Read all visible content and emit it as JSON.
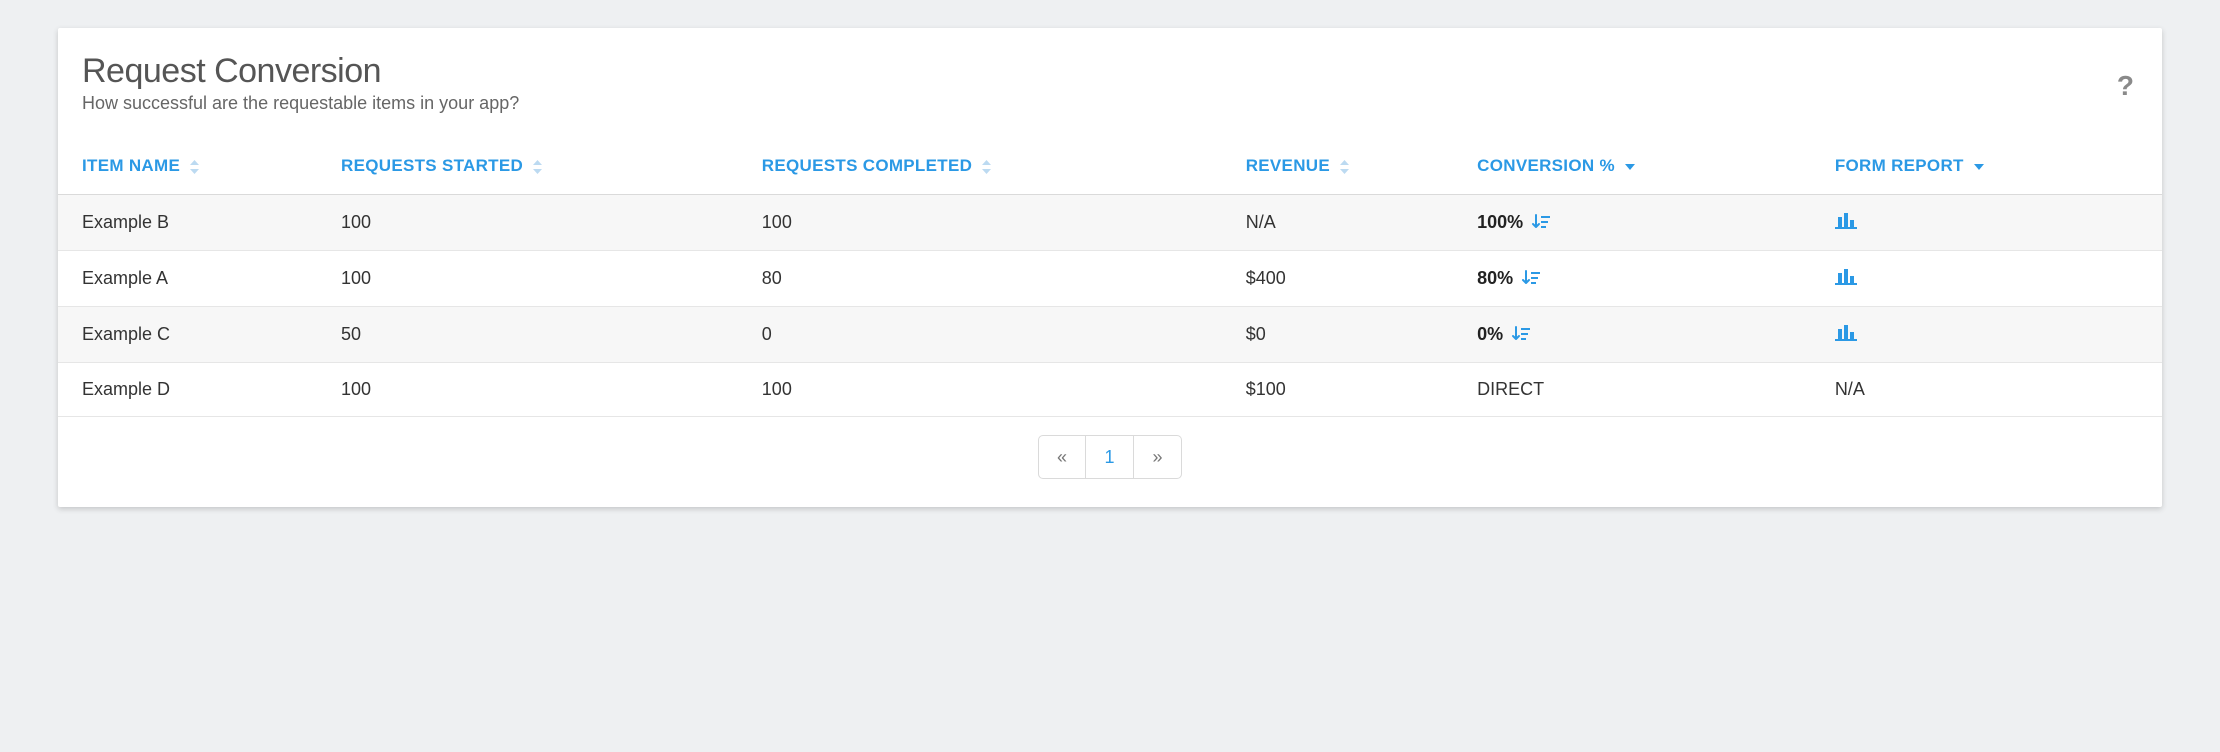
{
  "colors": {
    "page_bg": "#eef0f2",
    "card_bg": "#ffffff",
    "accent": "#2b99e5",
    "text_dark": "#333333",
    "text_muted": "#6d6d6d",
    "text_light": "#9b9b9b",
    "row_alt": "#f7f7f7",
    "border": "#dadada"
  },
  "header": {
    "title": "Request Conversion",
    "subtitle": "How successful are the requestable items in your app?",
    "help_label": "?"
  },
  "table": {
    "columns": {
      "item_name": "ITEM NAME",
      "requests_started": "REQUESTS STARTED",
      "requests_completed": "REQUESTS COMPLETED",
      "revenue": "REVENUE",
      "conversion_pct": "CONVERSION %",
      "form_report": "FORM REPORT"
    },
    "rows": [
      {
        "item_name": "Example B",
        "requests_started": "100",
        "requests_completed": "100",
        "revenue": "N/A",
        "revenue_muted": true,
        "conversion": "100%",
        "conversion_show_icon": true,
        "form_report": "chart"
      },
      {
        "item_name": "Example A",
        "requests_started": "100",
        "requests_completed": "80",
        "revenue": "$400",
        "revenue_muted": false,
        "conversion": "80%",
        "conversion_show_icon": true,
        "form_report": "chart"
      },
      {
        "item_name": "Example C",
        "requests_started": "50",
        "requests_completed": "0",
        "revenue": "$0",
        "revenue_muted": false,
        "conversion": "0%",
        "conversion_show_icon": true,
        "form_report": "chart"
      },
      {
        "item_name": "Example D",
        "requests_started": "100",
        "requests_completed": "100",
        "revenue": "$100",
        "revenue_muted": false,
        "conversion": "DIRECT",
        "conversion_show_icon": false,
        "form_report": "N/A"
      }
    ]
  },
  "pagination": {
    "prev_label": "«",
    "next_label": "»",
    "current_page": "1"
  }
}
